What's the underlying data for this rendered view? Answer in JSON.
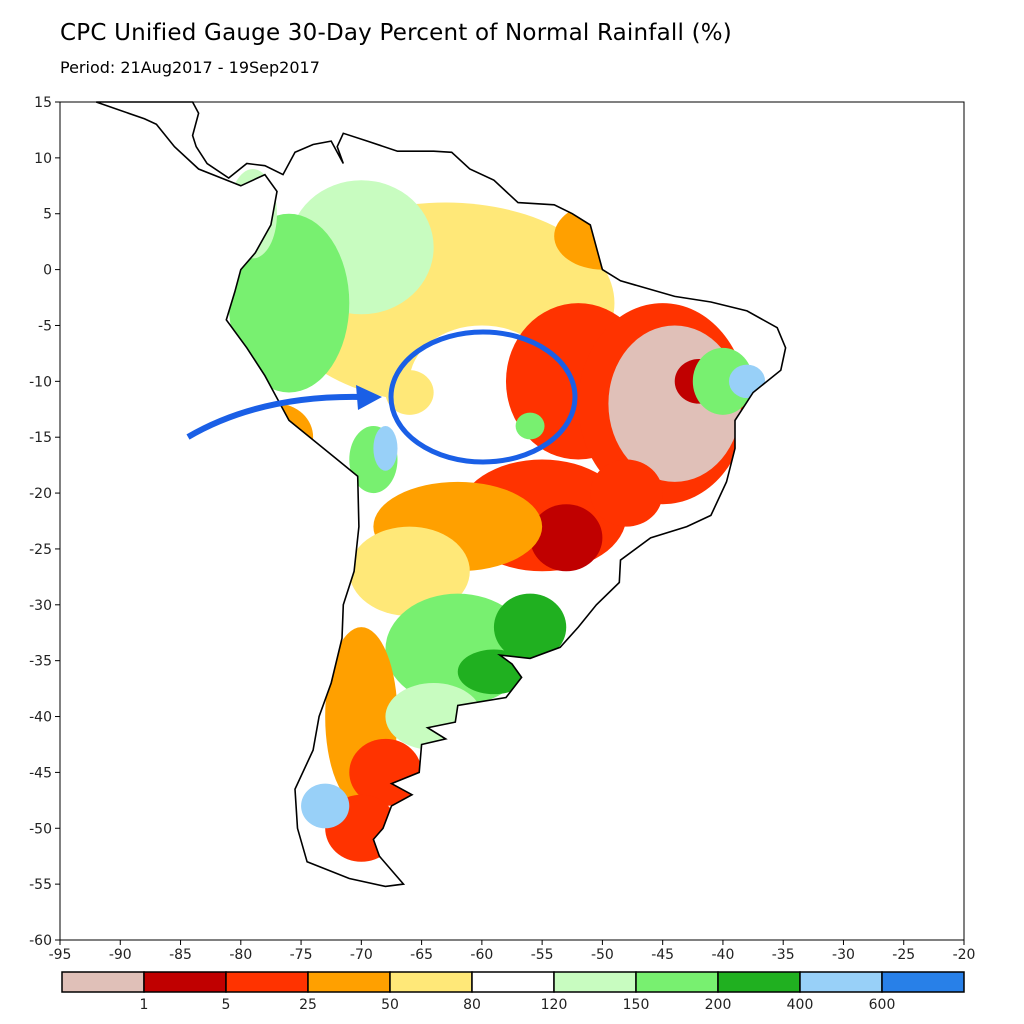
{
  "title": "CPC Unified Gauge 30-Day Percent of Normal Rainfall (%)",
  "subtitle": "Period: 21Aug2017 - 19Sep2017",
  "map": {
    "lon_range": [
      -95,
      -20
    ],
    "lat_range": [
      -60,
      15
    ],
    "x_ticks": [
      "-95",
      "-90",
      "-85",
      "-80",
      "-75",
      "-70",
      "-65",
      "-60",
      "-55",
      "-50",
      "-45",
      "-40",
      "-35",
      "-30",
      "-25",
      "-20"
    ],
    "y_ticks": [
      "15",
      "10",
      "5",
      "0",
      "-5",
      "-10",
      "-15",
      "-20",
      "-25",
      "-30",
      "-35",
      "-40",
      "-45",
      "-50",
      "-55",
      "-60"
    ],
    "annotation": {
      "type": "circle-with-arrow",
      "color": "#1a5fe6",
      "center_lon": -60,
      "center_lat": -11.5
    }
  },
  "legend": {
    "colors": [
      "#e0c0b8",
      "#c00000",
      "#ff3300",
      "#ffa000",
      "#ffe878",
      "#ffffff",
      "#c8fcc0",
      "#78f070",
      "#20b020",
      "#98d0f8",
      "#2880e8"
    ],
    "labels": [
      "1",
      "5",
      "25",
      "50",
      "80",
      "120",
      "150",
      "200",
      "400",
      "600"
    ]
  }
}
